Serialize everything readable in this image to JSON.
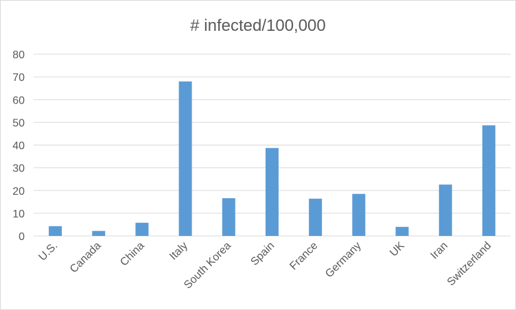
{
  "chart_data": {
    "type": "bar",
    "title": "# infected/100,000",
    "xlabel": "",
    "ylabel": "",
    "categories": [
      "U.S.",
      "Canada",
      "China",
      "Italy",
      "South Korea",
      "Spain",
      "France",
      "Germany",
      "UK",
      "Iran",
      "Switzerland"
    ],
    "values": [
      4.3,
      2.2,
      5.8,
      68.0,
      16.6,
      38.7,
      16.4,
      18.5,
      4.0,
      22.6,
      48.7
    ],
    "ylim": [
      0,
      80
    ],
    "yticks": [
      "0",
      "10",
      "20",
      "30",
      "40",
      "50",
      "60",
      "70",
      "80"
    ],
    "grid": true,
    "legend": "none",
    "bar_color": "#5b9bd5"
  }
}
